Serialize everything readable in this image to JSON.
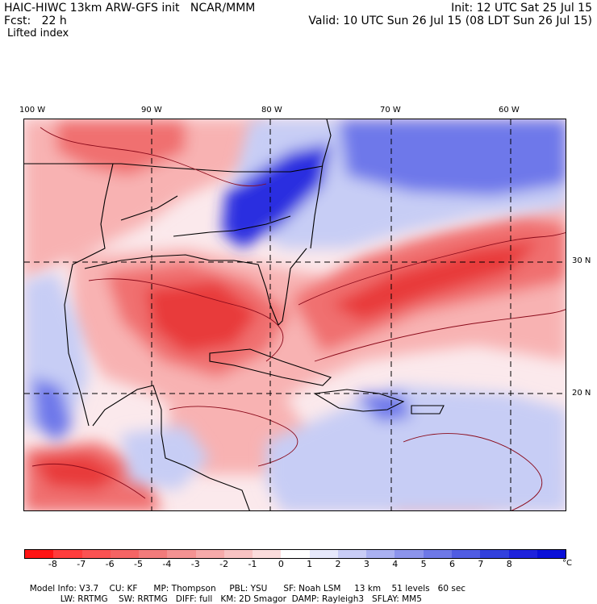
{
  "header": {
    "model_line": "HAIC-HIWC 13km ARW-GFS init   NCAR/MMM",
    "fcst_line": "Fcst:   22 h",
    "field_name": "Lifted index",
    "init_line": "Init: 12 UTC Sat 25 Jul 15",
    "valid_line": "Valid: 10 UTC Sun 26 Jul 15 (08 LDT Sun 26 Jul 15)"
  },
  "map": {
    "lon_labels": [
      "100 W",
      "90 W",
      "80 W",
      "70 W",
      "60 W"
    ],
    "lat_labels": [
      "30 N",
      "20 N"
    ],
    "colors": {
      "background": "#fbe9ec",
      "negative_strong": "#e83a3a",
      "negative_mid": "#f07070",
      "negative_light": "#f8b2b2",
      "positive_light": "#c7cdf5",
      "positive_mid": "#6e78ea",
      "positive_strong": "#2a2fe0",
      "boundary": "#000000",
      "contour": "#8a0a1a"
    }
  },
  "colorbar": {
    "tick_labels": [
      "-8",
      "-7",
      "-6",
      "-5",
      "-4",
      "-3",
      "-2",
      "-1",
      "0",
      "1",
      "2",
      "3",
      "4",
      "5",
      "6",
      "7",
      "8"
    ],
    "unit": "°C",
    "colors": [
      "#ff1414",
      "#ff3c3c",
      "#fb5252",
      "#f56464",
      "#f27b7b",
      "#f49292",
      "#f6aaaa",
      "#f8c2c2",
      "#fbdcdc",
      "#ffffff",
      "#e6e8fb",
      "#c9cdf6",
      "#aab1f1",
      "#8c94ec",
      "#6e78e7",
      "#505ce2",
      "#3240dd",
      "#1e22dc",
      "#0a10d8"
    ]
  },
  "model_info": {
    "line1": [
      "Model Info: V3.7",
      "CU: KF",
      "MP: Thompson",
      "PBL: YSU",
      "SF: Noah LSM",
      "13 km",
      "51 levels",
      "60 sec"
    ],
    "line2": [
      "LW: RRTMG",
      "SW: RRTMG",
      "DIFF: full",
      "KM: 2D Smagor",
      "DAMP: Rayleigh3",
      "SFLAY: MM5"
    ]
  }
}
